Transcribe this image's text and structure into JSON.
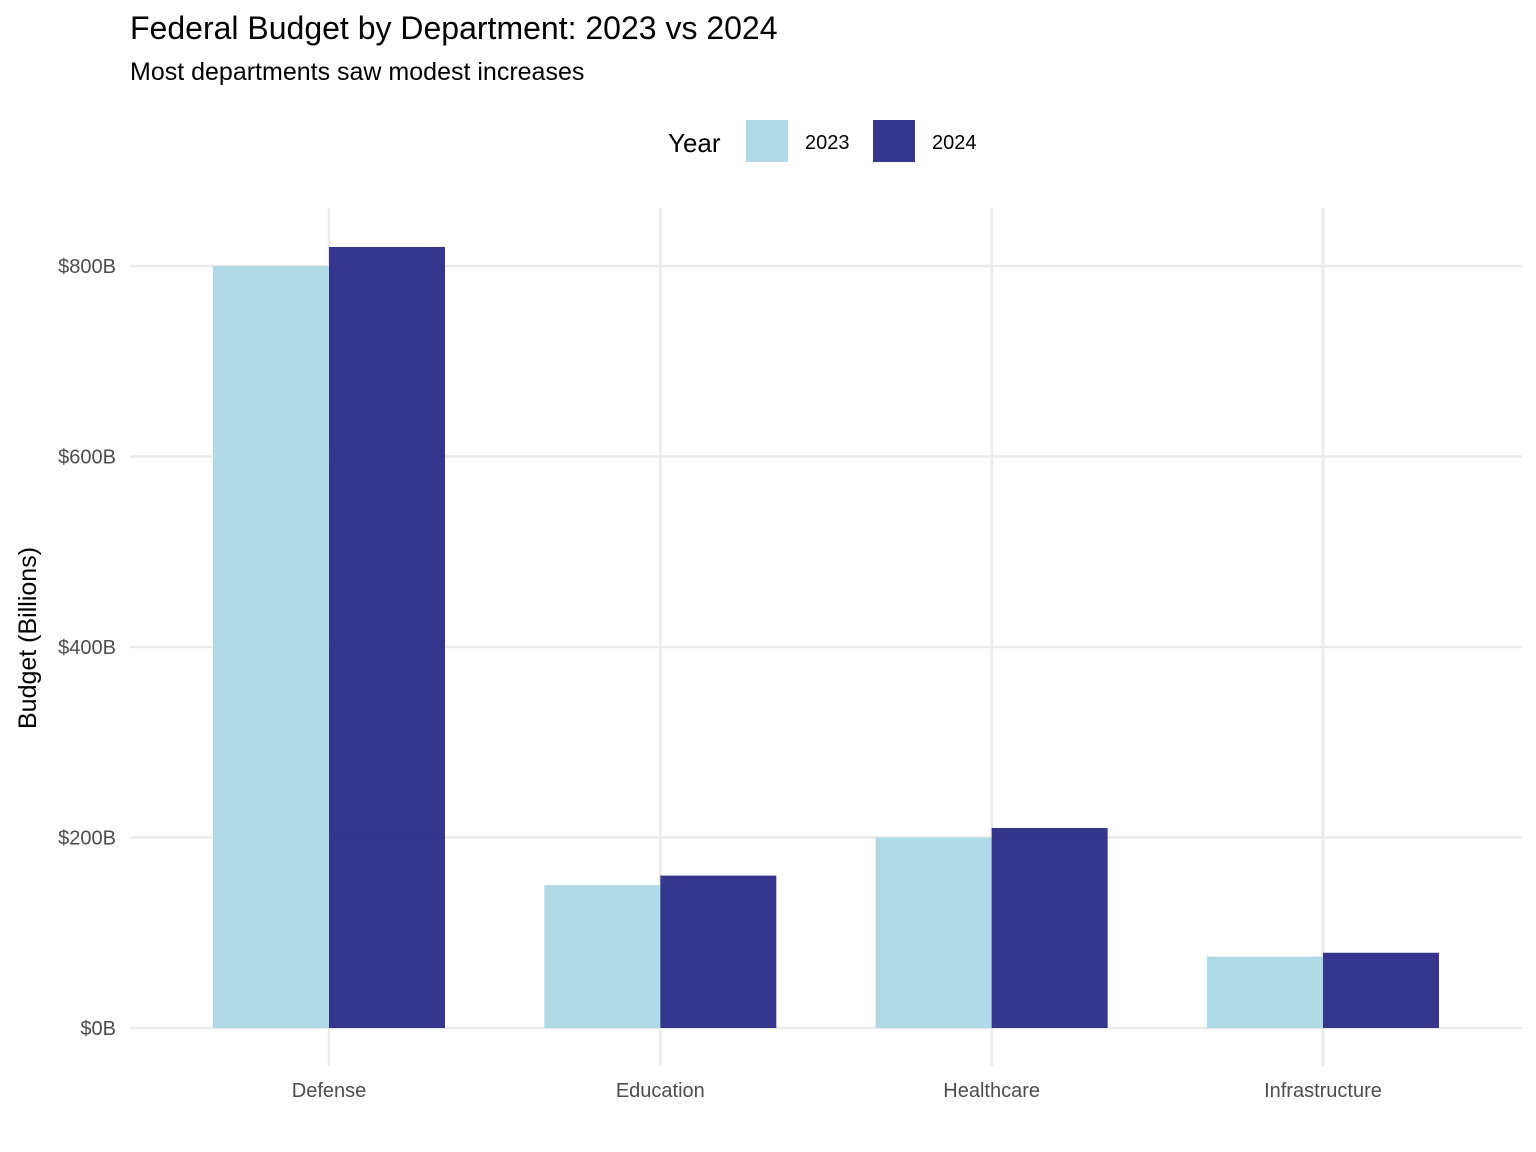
{
  "chart_data": {
    "type": "bar",
    "title": "Federal Budget by Department: 2023 vs 2024",
    "subtitle": "Most departments saw modest increases",
    "xlabel": "",
    "ylabel": "Budget (Billions)",
    "categories": [
      "Defense",
      "Education",
      "Healthcare",
      "Infrastructure"
    ],
    "series": [
      {
        "name": "2023",
        "color": "#add8e6",
        "values": [
          800,
          150,
          200,
          75
        ]
      },
      {
        "name": "2024",
        "color": "#1a1a80",
        "values": [
          820,
          160,
          210,
          79
        ]
      }
    ],
    "ylim": [
      0,
      800
    ],
    "yticks": [
      0,
      200,
      400,
      600,
      800
    ],
    "ytick_labels": [
      "$0B",
      "$200B",
      "$400B",
      "$600B",
      "$800B"
    ],
    "legend": {
      "title": "Year",
      "position": "top"
    },
    "grid": true
  }
}
